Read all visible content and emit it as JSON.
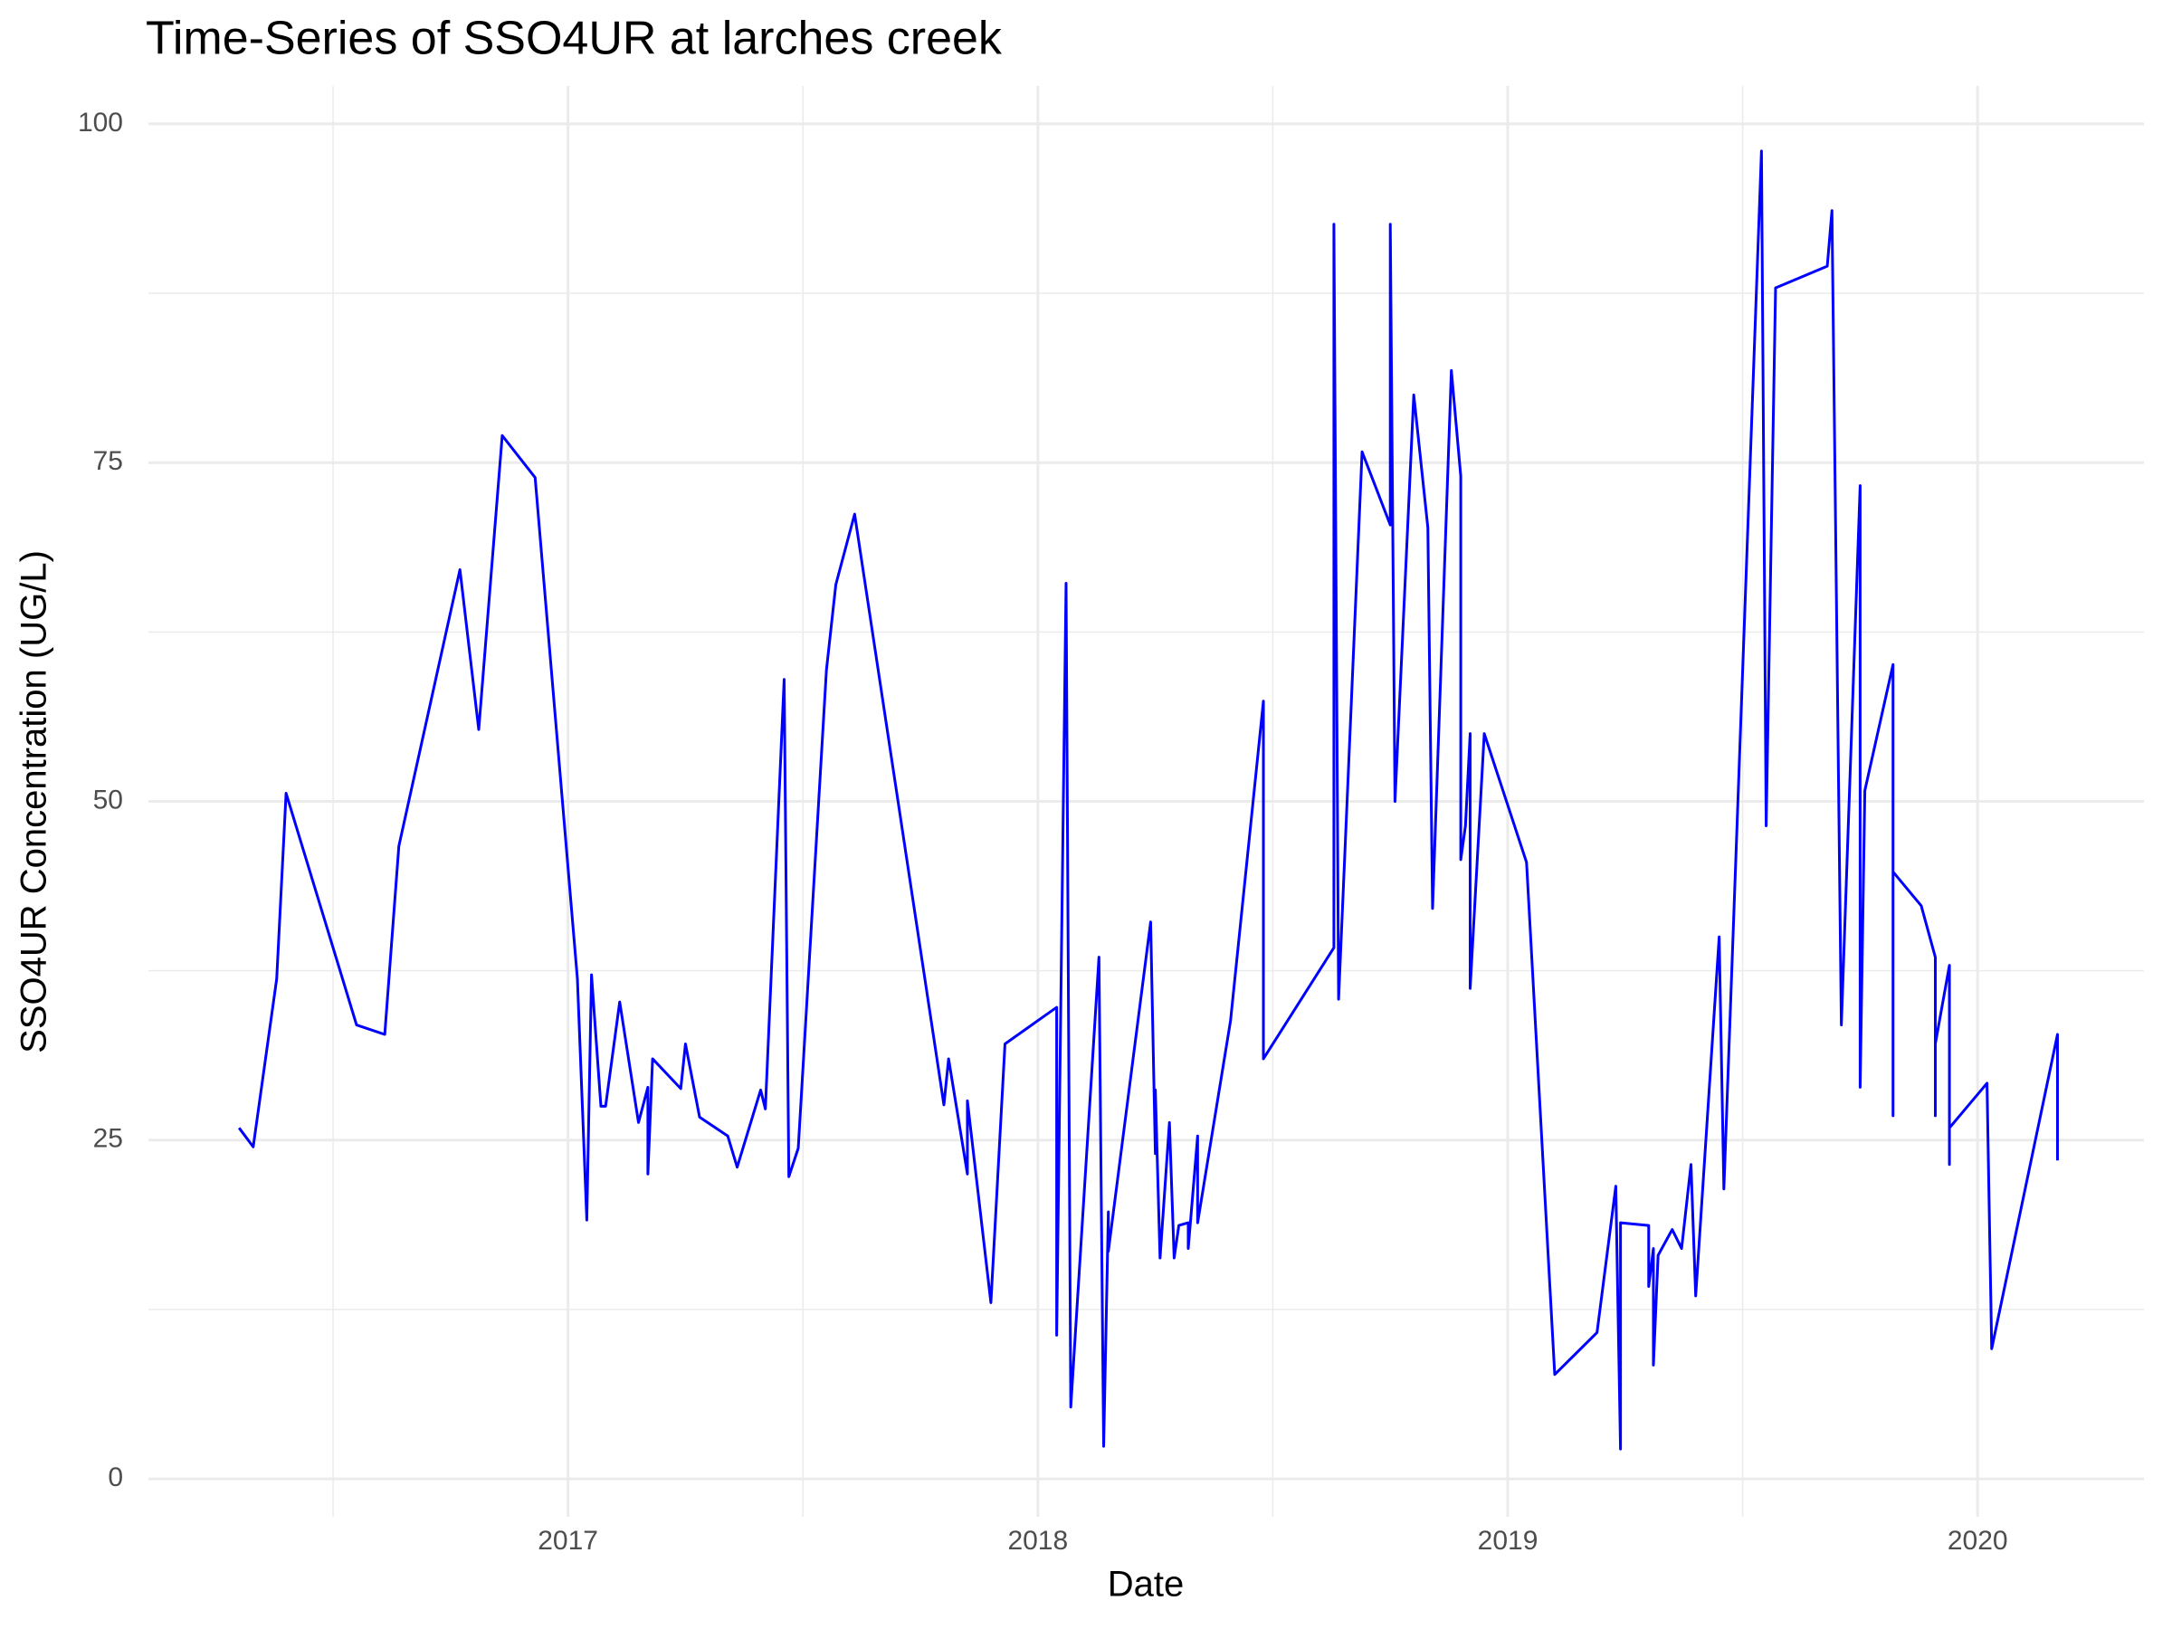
{
  "chart_data": {
    "type": "line",
    "title": "Time-Series of SSO4UR at larches creek",
    "x_label": "Date",
    "y_label": "SSO4UR Concentration (UG/L)",
    "color": "#0000ff",
    "grid": true,
    "x": [
      2016.3,
      2016.33,
      2016.38,
      2016.4,
      2016.55,
      2016.61,
      2016.64,
      2016.77,
      2016.81,
      2016.86,
      2016.93,
      2017.02,
      2017.04,
      2017.05,
      2017.07,
      2017.08,
      2017.11,
      2017.15,
      2017.17,
      2017.17,
      2017.18,
      2017.24,
      2017.25,
      2017.28,
      2017.34,
      2017.36,
      2017.41,
      2017.42,
      2017.46,
      2017.47,
      2017.49,
      2017.55,
      2017.57,
      2017.61,
      2017.8,
      2017.81,
      2017.85,
      2017.85,
      2017.9,
      2017.93,
      2018.04,
      2018.04,
      2018.06,
      2018.07,
      2018.13,
      2018.14,
      2018.15,
      2018.15,
      2018.24,
      2018.25,
      2018.25,
      2018.26,
      2018.28,
      2018.29,
      2018.3,
      2018.32,
      2018.32,
      2018.34,
      2018.34,
      2018.41,
      2018.48,
      2018.48,
      2018.63,
      2018.63,
      2018.64,
      2018.69,
      2018.75,
      2018.75,
      2018.76,
      2018.8,
      2018.83,
      2018.84,
      2018.88,
      2018.9,
      2018.9,
      2018.91,
      2018.92,
      2018.92,
      2018.95,
      2019.04,
      2019.1,
      2019.19,
      2019.23,
      2019.24,
      2019.24,
      2019.3,
      2019.3,
      2019.31,
      2019.31,
      2019.32,
      2019.35,
      2019.37,
      2019.39,
      2019.4,
      2019.45,
      2019.46,
      2019.54,
      2019.55,
      2019.57,
      2019.68,
      2019.69,
      2019.71,
      2019.75,
      2019.75,
      2019.76,
      2019.82,
      2019.82,
      2019.82,
      2019.88,
      2019.91,
      2019.91,
      2019.91,
      2019.94,
      2019.94,
      2019.94,
      2020.02,
      2020.03,
      2020.17,
      2020.17
    ],
    "values": [
      25.9,
      24.5,
      36.9,
      50.6,
      33.5,
      32.8,
      46.7,
      67.1,
      55.3,
      77.0,
      73.9,
      36.9,
      19.1,
      37.2,
      27.5,
      27.5,
      35.2,
      26.3,
      28.9,
      22.5,
      31.0,
      28.8,
      32.1,
      26.7,
      25.3,
      23.0,
      28.7,
      27.3,
      59.0,
      22.3,
      24.4,
      59.7,
      66.0,
      71.2,
      27.6,
      31.0,
      22.5,
      27.9,
      13.0,
      32.1,
      34.8,
      10.6,
      66.1,
      5.3,
      38.5,
      2.4,
      19.7,
      16.8,
      41.1,
      24.0,
      28.7,
      16.3,
      26.3,
      16.3,
      18.7,
      18.9,
      17.0,
      25.3,
      18.9,
      33.8,
      57.4,
      31.0,
      39.2,
      92.6,
      35.4,
      75.8,
      70.4,
      92.6,
      50.0,
      80.0,
      70.2,
      42.1,
      81.8,
      74.0,
      45.7,
      48.2,
      55.0,
      36.2,
      55.0,
      45.5,
      7.7,
      10.8,
      21.6,
      2.2,
      18.9,
      18.7,
      14.2,
      17.0,
      8.4,
      16.5,
      18.4,
      17.0,
      23.2,
      13.5,
      40.0,
      21.4,
      98.0,
      48.2,
      87.9,
      89.5,
      93.6,
      33.5,
      73.3,
      28.9,
      50.8,
      60.1,
      26.8,
      44.8,
      42.3,
      38.5,
      26.8,
      32.1,
      37.9,
      23.2,
      25.9,
      29.2,
      9.6,
      32.8,
      23.5
    ],
    "xlim": [
      2016.107,
      2020.354
    ],
    "xticks": [
      2017,
      2018,
      2019,
      2020
    ],
    "ylim": [
      -2.8,
      102.8
    ],
    "yticks": [
      0,
      25,
      50,
      75,
      100
    ]
  }
}
